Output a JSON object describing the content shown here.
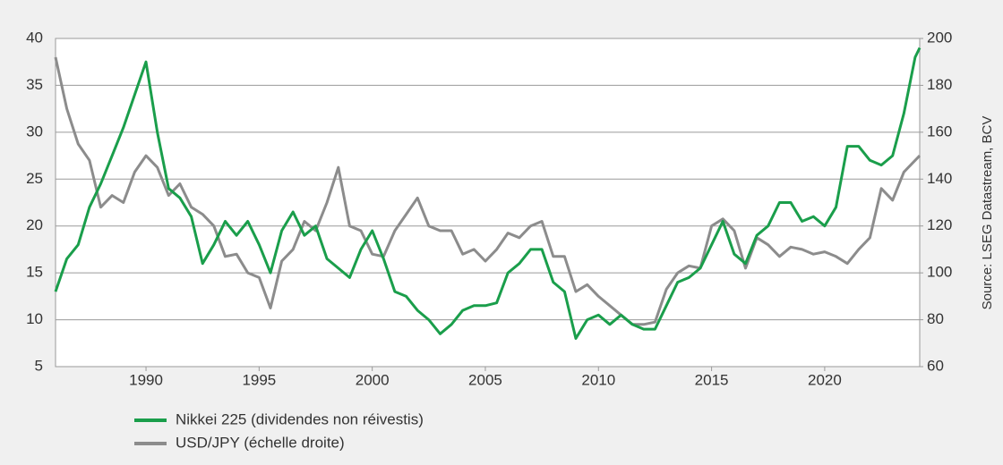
{
  "chart_data": {
    "type": "line",
    "source": "Source: LSEG Datastream, BCV",
    "x": [
      1986.0,
      1986.5,
      1987.0,
      1987.5,
      1988.0,
      1988.5,
      1989.0,
      1989.5,
      1990.0,
      1990.5,
      1991.0,
      1991.5,
      1992.0,
      1992.5,
      1993.0,
      1993.5,
      1994.0,
      1994.5,
      1995.0,
      1995.5,
      1996.0,
      1996.5,
      1997.0,
      1997.5,
      1998.0,
      1998.5,
      1999.0,
      1999.5,
      2000.0,
      2000.5,
      2001.0,
      2001.5,
      2002.0,
      2002.5,
      2003.0,
      2003.5,
      2004.0,
      2004.5,
      2005.0,
      2005.5,
      2006.0,
      2006.5,
      2007.0,
      2007.5,
      2008.0,
      2008.5,
      2009.0,
      2009.5,
      2010.0,
      2010.5,
      2011.0,
      2011.5,
      2012.0,
      2012.5,
      2013.0,
      2013.5,
      2014.0,
      2014.5,
      2015.0,
      2015.5,
      2016.0,
      2016.5,
      2017.0,
      2017.5,
      2018.0,
      2018.5,
      2019.0,
      2019.5,
      2020.0,
      2020.5,
      2021.0,
      2021.5,
      2022.0,
      2022.5,
      2023.0,
      2023.5,
      2024.0,
      2024.2
    ],
    "series": [
      {
        "name": "Nikkei 225 (dividendes non réivestis)",
        "color": "#1a9e4b",
        "axis": "y",
        "values": [
          13,
          16.5,
          18,
          22,
          24.5,
          27.5,
          30.5,
          34,
          37.5,
          30,
          24,
          23,
          21,
          16,
          18,
          20.5,
          19,
          20.5,
          18,
          15,
          19.5,
          21.5,
          19,
          20,
          16.5,
          15.5,
          14.5,
          17.5,
          19.5,
          16.5,
          13,
          12.5,
          11,
          10,
          8.5,
          9.5,
          11,
          11.5,
          11.5,
          11.8,
          15,
          16,
          17.5,
          17.5,
          14,
          13,
          8,
          10,
          10.5,
          9.5,
          10.5,
          9.5,
          9,
          9,
          11.5,
          14,
          14.5,
          15.5,
          18,
          20.5,
          17,
          16,
          19,
          20,
          22.5,
          22.5,
          20.5,
          21,
          20,
          22,
          28.5,
          28.5,
          27,
          26.5,
          27.5,
          32,
          38,
          39
        ]
      },
      {
        "name": "USD/JPY (échelle droite)",
        "color": "#8c8c8c",
        "axis": "y2",
        "values": [
          192,
          170,
          155,
          148,
          128,
          133,
          130,
          143,
          150,
          145,
          133,
          138,
          128,
          125,
          120,
          107,
          108,
          100,
          98,
          85,
          105,
          110,
          122,
          118,
          130,
          145,
          120,
          118,
          108,
          107,
          118,
          125,
          132,
          120,
          118,
          118,
          108,
          110,
          105,
          110,
          117,
          115,
          120,
          122,
          107,
          107,
          92,
          95,
          90,
          86,
          82,
          78,
          78,
          79,
          93,
          100,
          103,
          102,
          120,
          123,
          118,
          102,
          115,
          112,
          107,
          111,
          110,
          108,
          109,
          107,
          104,
          110,
          115,
          136,
          131,
          143,
          148,
          150
        ]
      }
    ],
    "xlim": [
      1986,
      2024.2
    ],
    "xticks": [
      1990,
      1995,
      2000,
      2005,
      2010,
      2015,
      2020
    ],
    "ylim": [
      5,
      40
    ],
    "yticks": [
      5,
      10,
      15,
      20,
      25,
      30,
      35,
      40
    ],
    "y2lim": [
      60,
      200
    ],
    "y2ticks": [
      60,
      80,
      100,
      120,
      140,
      160,
      180,
      200
    ],
    "grid": true,
    "legend": "bottom"
  }
}
